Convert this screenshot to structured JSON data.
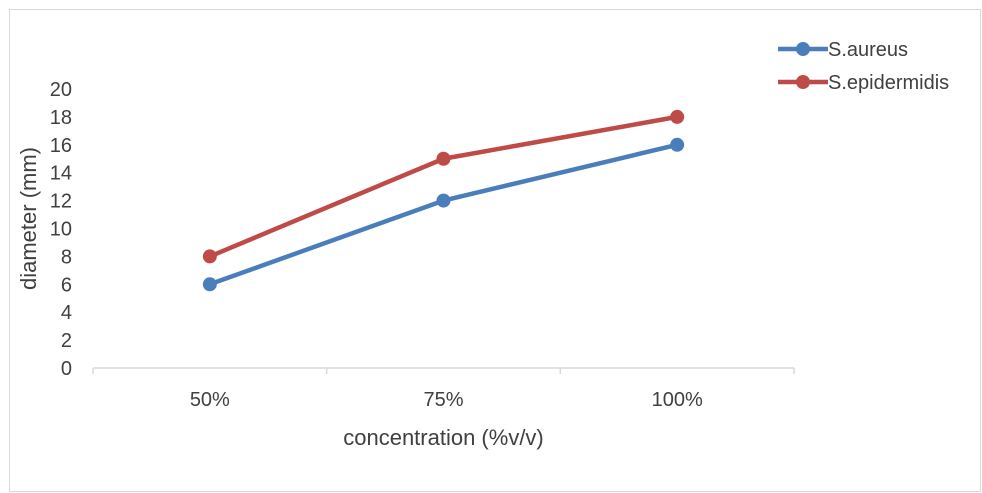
{
  "chart_data": {
    "type": "line",
    "categories": [
      "50%",
      "75%",
      "100%"
    ],
    "series": [
      {
        "name": "S.aureus",
        "values": [
          6,
          12,
          16
        ],
        "color": "#4a7ebb"
      },
      {
        "name": "S.epidermidis",
        "values": [
          8,
          15,
          18
        ],
        "color": "#be4b48"
      }
    ],
    "xlabel": "concentration (%v/v)",
    "ylabel": "diameter (mm)",
    "ylim": [
      0,
      20
    ],
    "yticks": [
      0,
      2,
      4,
      6,
      8,
      10,
      12,
      14,
      16,
      18,
      20
    ],
    "grid": false,
    "legend_position": "top-right"
  }
}
